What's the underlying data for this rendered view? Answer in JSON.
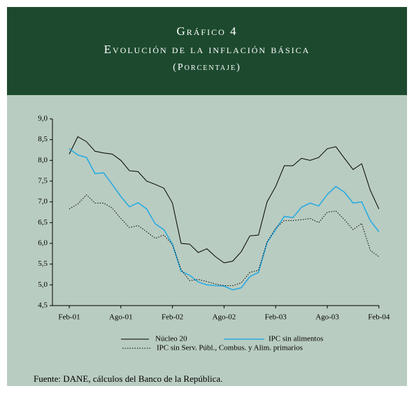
{
  "chart_data": {
    "type": "line",
    "title": "Gráfico 4",
    "subtitle": "Evolución de la inflación básica",
    "unit_label": "(Porcentaje)",
    "source": "Fuente: DANE, cálculos del Banco de la República.",
    "categories": [
      "Feb-01",
      null,
      null,
      null,
      null,
      null,
      "Ago-01",
      null,
      null,
      null,
      null,
      null,
      "Feb-02",
      null,
      null,
      null,
      null,
      null,
      "Ago-02",
      null,
      null,
      null,
      null,
      null,
      "Feb-03",
      null,
      null,
      null,
      null,
      null,
      "Ago-03",
      null,
      null,
      null,
      null,
      null,
      "Feb-04"
    ],
    "ylim": [
      4.5,
      9.0
    ],
    "yticks": [
      {
        "value": 4.5,
        "label": "4,5"
      },
      {
        "value": 5.0,
        "label": "5,0"
      },
      {
        "value": 5.5,
        "label": "5,5"
      },
      {
        "value": 6.0,
        "label": "6,0"
      },
      {
        "value": 6.5,
        "label": "6,5"
      },
      {
        "value": 7.0,
        "label": "7,0"
      },
      {
        "value": 7.5,
        "label": "7,5"
      },
      {
        "value": 8.0,
        "label": "8,0"
      },
      {
        "value": 8.5,
        "label": "8,5"
      },
      {
        "value": 9.0,
        "label": "9,0"
      }
    ],
    "series": [
      {
        "name": "Núcleo 20",
        "color": "#000000",
        "style": "solid",
        "values": [
          8.15,
          8.57,
          8.45,
          8.22,
          8.18,
          8.15,
          8.0,
          7.75,
          7.73,
          7.5,
          7.42,
          7.33,
          6.97,
          6.0,
          5.98,
          5.78,
          5.87,
          5.68,
          5.53,
          5.57,
          5.8,
          6.18,
          6.2,
          7.0,
          7.37,
          7.87,
          7.87,
          8.05,
          8.0,
          8.07,
          8.28,
          8.33,
          8.05,
          7.78,
          7.92,
          7.28,
          6.83
        ]
      },
      {
        "name": "IPC sin alimentos",
        "color": "#29abe2",
        "style": "solid",
        "values": [
          8.28,
          8.13,
          8.07,
          7.68,
          7.7,
          7.42,
          7.13,
          6.88,
          6.98,
          6.83,
          6.47,
          6.33,
          5.98,
          5.33,
          5.23,
          5.07,
          5.0,
          4.98,
          4.97,
          4.88,
          4.93,
          5.2,
          5.3,
          6.02,
          6.33,
          6.65,
          6.62,
          6.87,
          6.97,
          6.9,
          7.18,
          7.37,
          7.23,
          6.97,
          7.0,
          6.55,
          6.28
        ]
      },
      {
        "name": "IPC sin Serv. Públ., Combus. y Alim. primarios",
        "color": "#000000",
        "style": "dotted",
        "values": [
          6.83,
          6.95,
          7.17,
          6.97,
          6.97,
          6.85,
          6.6,
          6.38,
          6.43,
          6.28,
          6.12,
          6.2,
          5.97,
          5.37,
          5.1,
          5.13,
          5.08,
          5.02,
          4.98,
          4.98,
          5.05,
          5.3,
          5.35,
          6.03,
          6.37,
          6.55,
          6.55,
          6.57,
          6.6,
          6.5,
          6.75,
          6.78,
          6.57,
          6.33,
          6.48,
          5.83,
          5.68
        ]
      }
    ]
  }
}
